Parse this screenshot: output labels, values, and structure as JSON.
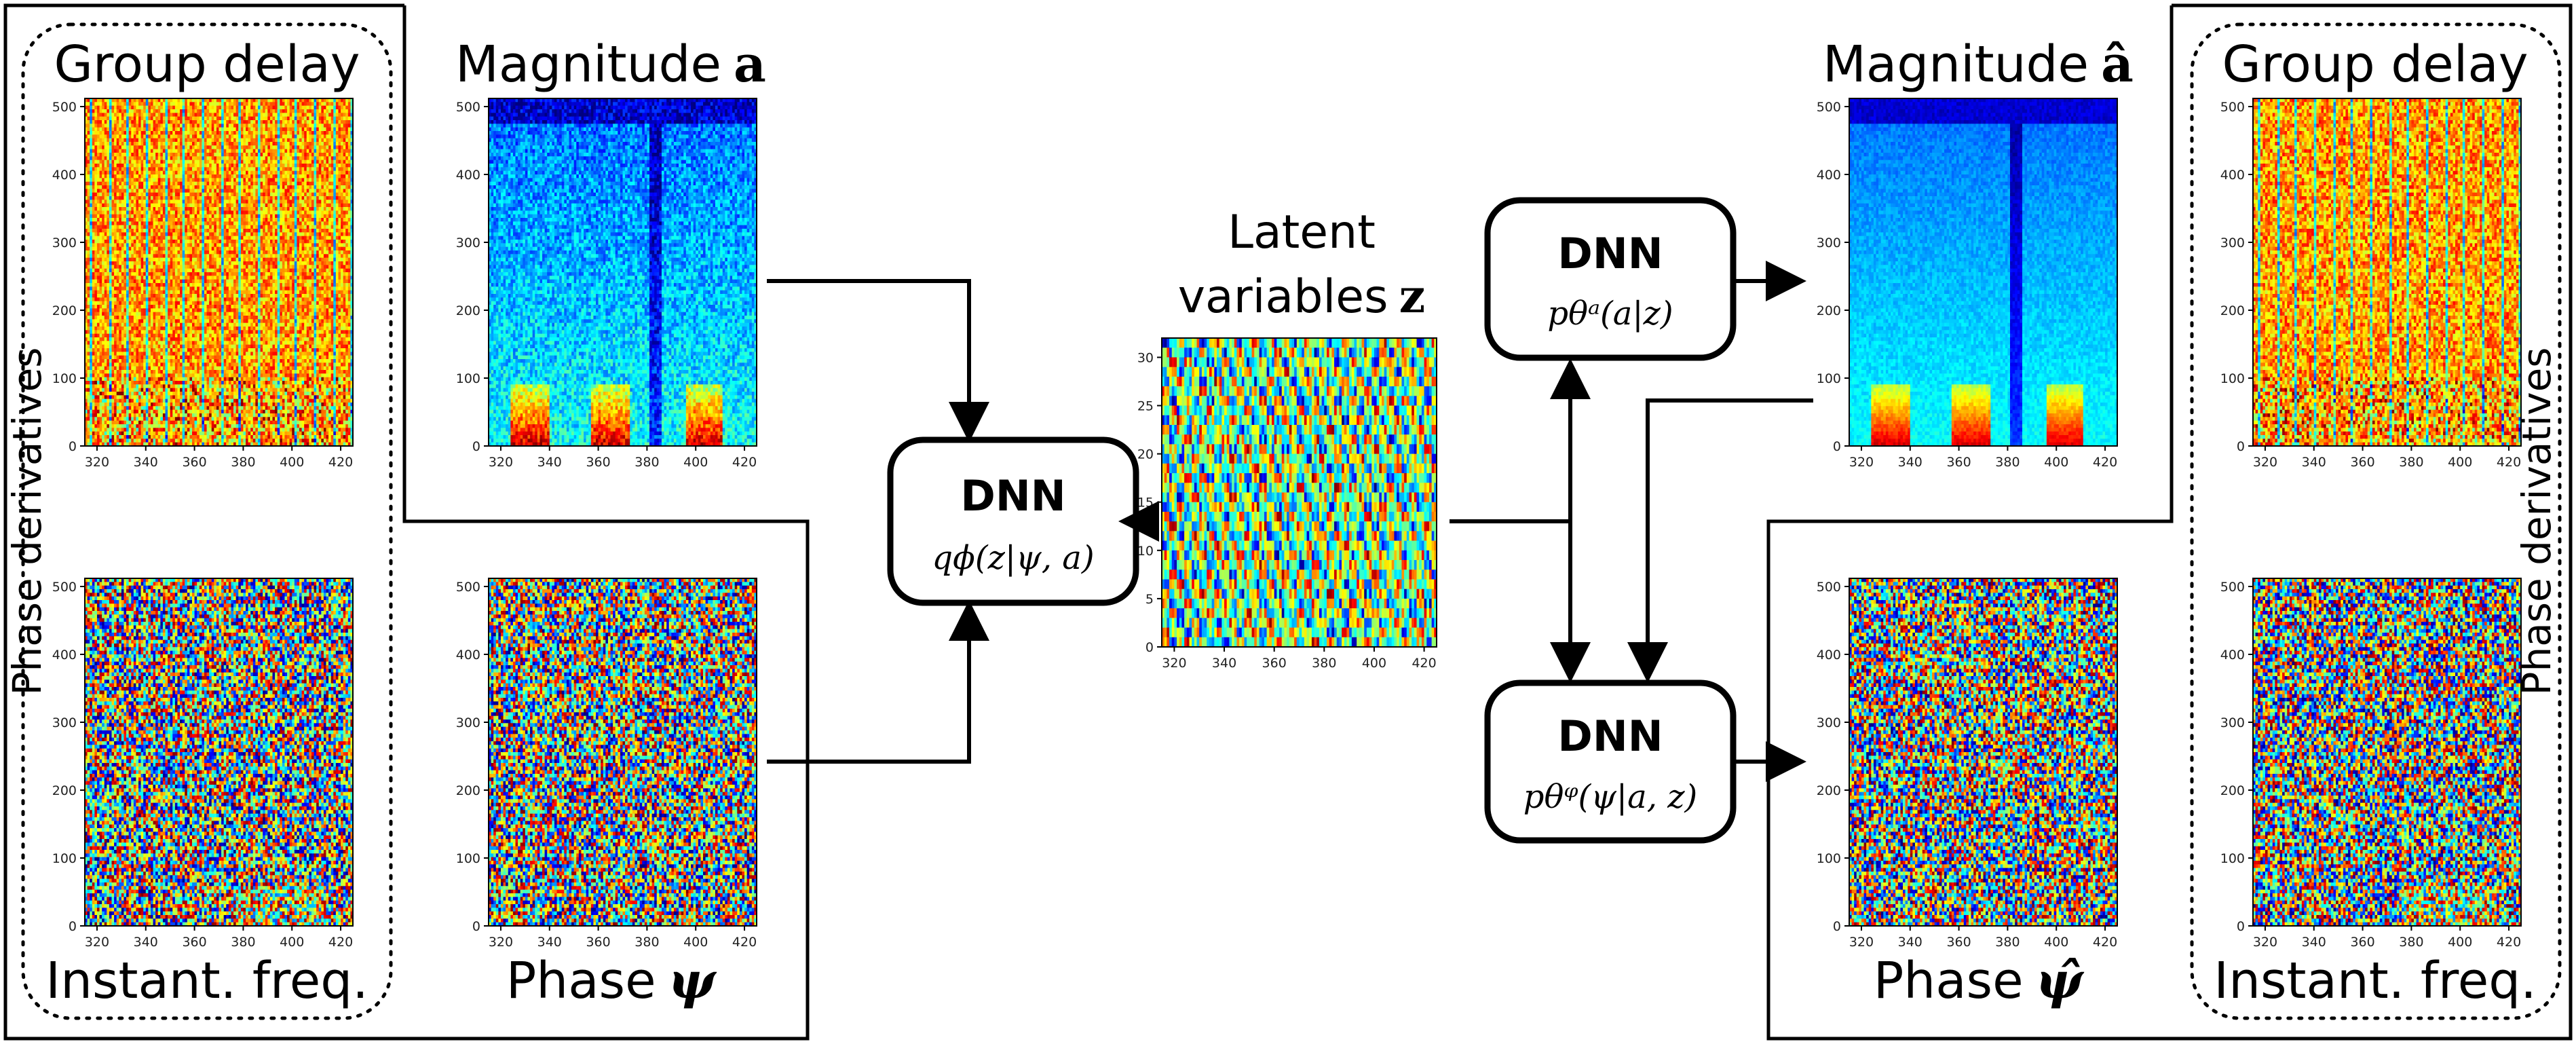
{
  "colors": {
    "stroke": "#000000",
    "background": "#ffffff",
    "colormap": [
      "#00007f",
      "#0000ff",
      "#007fff",
      "#00ffff",
      "#7fff7f",
      "#ffff00",
      "#ff7f00",
      "#ff0000",
      "#7f0000"
    ]
  },
  "icons": {
    "arrow": "arrowhead"
  },
  "left_panel": {
    "group_delay_title": "Group delay",
    "instant_freq_title": "Instant. freq.",
    "side_label": "Phase derivatives"
  },
  "right_panel": {
    "group_delay_title": "Group delay",
    "instant_freq_title": "Instant. freq.",
    "side_label": "Phase derivatives"
  },
  "input": {
    "magnitude_title": "Magnitude",
    "magnitude_symbol": "a",
    "phase_title": "Phase",
    "phase_symbol": "ψ"
  },
  "output": {
    "magnitude_title": "Magnitude",
    "magnitude_symbol": "â",
    "phase_title": "Phase",
    "phase_symbol": "ψ̂"
  },
  "latent": {
    "title_line1": "Latent",
    "title_line2": "variables",
    "symbol": "z"
  },
  "encoder": {
    "title": "DNN",
    "formula": "qϕ(z|ψ, a)"
  },
  "decoder_magnitude": {
    "title": "DNN",
    "formula": "pθᵃ(a|z)"
  },
  "decoder_phase": {
    "title": "DNN",
    "formula": "pθᵠ(ψ|a, z)"
  },
  "spectrogram_axes": {
    "x_ticks": [
      "320",
      "340",
      "360",
      "380",
      "400",
      "420"
    ],
    "y_ticks": [
      "0",
      "100",
      "200",
      "300",
      "400",
      "500"
    ]
  },
  "latent_axes": {
    "x_ticks": [
      "320",
      "340",
      "360",
      "380",
      "400",
      "420"
    ],
    "y_ticks": [
      "0",
      "5",
      "10",
      "15",
      "20",
      "25",
      "30"
    ]
  },
  "chart_data": [
    {
      "type": "heatmap",
      "panel": "group delay (input)",
      "title": "Group delay",
      "xlim": [
        315,
        425
      ],
      "ylim": [
        0,
        512
      ],
      "x_ticks": [
        320,
        340,
        360,
        380,
        400,
        420
      ],
      "y_ticks": [
        0,
        100,
        200,
        300,
        400,
        500
      ]
    },
    {
      "type": "heatmap",
      "panel": "magnitude (input)",
      "title": "Magnitude a",
      "xlim": [
        315,
        425
      ],
      "ylim": [
        0,
        512
      ],
      "x_ticks": [
        320,
        340,
        360,
        380,
        400,
        420
      ],
      "y_ticks": [
        0,
        100,
        200,
        300,
        400,
        500
      ]
    },
    {
      "type": "heatmap",
      "panel": "instantaneous frequency (input)",
      "title": "Instant. freq.",
      "xlim": [
        315,
        425
      ],
      "ylim": [
        0,
        512
      ],
      "x_ticks": [
        320,
        340,
        360,
        380,
        400,
        420
      ],
      "y_ticks": [
        0,
        100,
        200,
        300,
        400,
        500
      ]
    },
    {
      "type": "heatmap",
      "panel": "phase (input)",
      "title": "Phase ψ",
      "xlim": [
        315,
        425
      ],
      "ylim": [
        0,
        512
      ],
      "x_ticks": [
        320,
        340,
        360,
        380,
        400,
        420
      ],
      "y_ticks": [
        0,
        100,
        200,
        300,
        400,
        500
      ]
    },
    {
      "type": "heatmap",
      "panel": "latent variables",
      "title": "Latent variables z",
      "xlim": [
        315,
        425
      ],
      "ylim": [
        0,
        32
      ],
      "x_ticks": [
        320,
        340,
        360,
        380,
        400,
        420
      ],
      "y_ticks": [
        0,
        5,
        10,
        15,
        20,
        25,
        30
      ]
    },
    {
      "type": "heatmap",
      "panel": "magnitude (output)",
      "title": "Magnitude â",
      "xlim": [
        315,
        425
      ],
      "ylim": [
        0,
        512
      ],
      "x_ticks": [
        320,
        340,
        360,
        380,
        400,
        420
      ],
      "y_ticks": [
        0,
        100,
        200,
        300,
        400,
        500
      ]
    },
    {
      "type": "heatmap",
      "panel": "group delay (output)",
      "title": "Group delay",
      "xlim": [
        315,
        425
      ],
      "ylim": [
        0,
        512
      ],
      "x_ticks": [
        320,
        340,
        360,
        380,
        400,
        420
      ],
      "y_ticks": [
        0,
        100,
        200,
        300,
        400,
        500
      ]
    },
    {
      "type": "heatmap",
      "panel": "phase (output)",
      "title": "Phase ψ̂",
      "xlim": [
        315,
        425
      ],
      "ylim": [
        0,
        512
      ],
      "x_ticks": [
        320,
        340,
        360,
        380,
        400,
        420
      ],
      "y_ticks": [
        0,
        100,
        200,
        300,
        400,
        500
      ]
    },
    {
      "type": "heatmap",
      "panel": "instantaneous frequency (output)",
      "title": "Instant. freq.",
      "xlim": [
        315,
        425
      ],
      "ylim": [
        0,
        512
      ],
      "x_ticks": [
        320,
        340,
        360,
        380,
        400,
        420
      ],
      "y_ticks": [
        0,
        100,
        200,
        300,
        400,
        500
      ]
    }
  ]
}
